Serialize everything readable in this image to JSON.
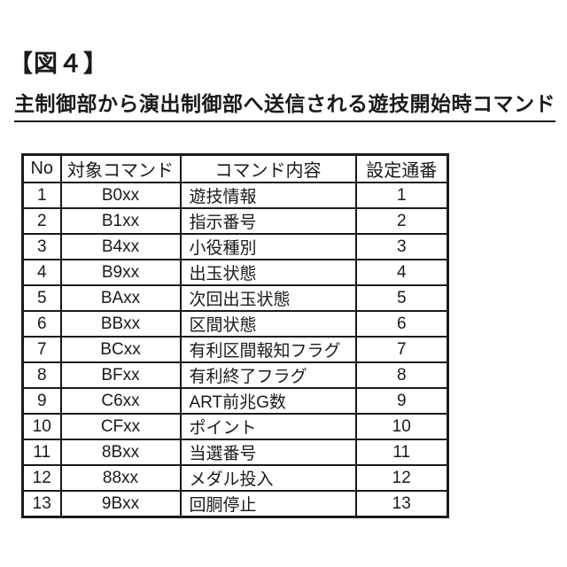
{
  "figure_label": "【図４】",
  "title": "主制御部から演出制御部へ送信される遊技開始時コマンド",
  "colors": {
    "background": "#ffffff",
    "text": "#1a1a1a",
    "border": "#1a1a1a"
  },
  "table": {
    "headers": [
      "No",
      "対象コマンド",
      "コマンド内容",
      "設定通番"
    ],
    "rows": [
      [
        "1",
        "B0xx",
        "遊技情報",
        "1"
      ],
      [
        "2",
        "B1xx",
        "指示番号",
        "2"
      ],
      [
        "3",
        "B4xx",
        "小役種別",
        "3"
      ],
      [
        "4",
        "B9xx",
        "出玉状態",
        "4"
      ],
      [
        "5",
        "BAxx",
        "次回出玉状態",
        "5"
      ],
      [
        "6",
        "BBxx",
        "区間状態",
        "6"
      ],
      [
        "7",
        "BCxx",
        "有利区間報知フラグ",
        "7"
      ],
      [
        "8",
        "BFxx",
        "有利終了フラグ",
        "8"
      ],
      [
        "9",
        "C6xx",
        "ART前兆G数",
        "9"
      ],
      [
        "10",
        "CFxx",
        "ポイント",
        "10"
      ],
      [
        "11",
        "8Bxx",
        "当選番号",
        "11"
      ],
      [
        "12",
        "88xx",
        "メダル投入",
        "12"
      ],
      [
        "13",
        "9Bxx",
        "回胴停止",
        "13"
      ]
    ]
  }
}
